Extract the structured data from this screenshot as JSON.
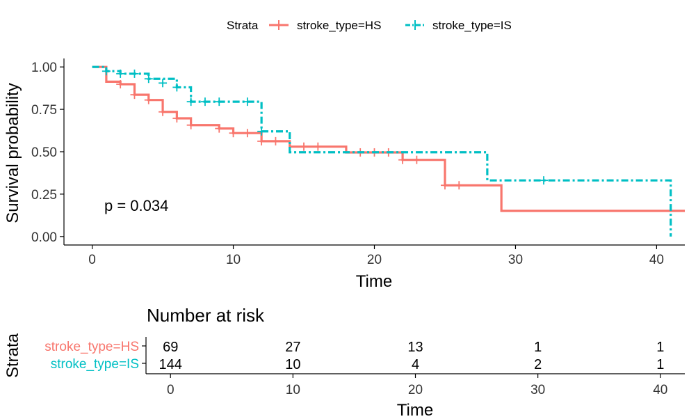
{
  "colors": {
    "hs": "#F8766D",
    "is": "#00BFC4",
    "axis": "#000000"
  },
  "chart_data": [
    {
      "type": "line",
      "subtype": "kaplan-meier",
      "xlabel": "Time",
      "ylabel": "Survival probability",
      "xlim": [
        -2,
        42
      ],
      "ylim": [
        -0.05,
        1.05
      ],
      "xticks": [
        0,
        10,
        20,
        30,
        40
      ],
      "yticks": [
        0.0,
        0.25,
        0.5,
        0.75,
        1.0
      ],
      "ytick_labels": [
        "0.00",
        "0.25",
        "0.50",
        "0.75",
        "1.00"
      ],
      "grid": false,
      "annotation": "p = 0.034",
      "legend": {
        "title": "Strata",
        "position": "top"
      },
      "series": [
        {
          "name": "stroke_type=HS",
          "color": "#F8766D",
          "line_style": "solid",
          "steps": [
            [
              0,
              1.0
            ],
            [
              1,
              0.913
            ],
            [
              2,
              0.898
            ],
            [
              3,
              0.836
            ],
            [
              4,
              0.805
            ],
            [
              5,
              0.735
            ],
            [
              6,
              0.697
            ],
            [
              7,
              0.657
            ],
            [
              9,
              0.637
            ],
            [
              10,
              0.61
            ],
            [
              12,
              0.562
            ],
            [
              14,
              0.53
            ],
            [
              18,
              0.496
            ],
            [
              22,
              0.452
            ],
            [
              25,
              0.302
            ],
            [
              29,
              0.151
            ],
            [
              42,
              0.151
            ]
          ],
          "censors": [
            [
              2,
              0.898
            ],
            [
              3,
              0.836
            ],
            [
              4,
              0.805
            ],
            [
              5,
              0.735
            ],
            [
              6,
              0.697
            ],
            [
              7,
              0.657
            ],
            [
              9,
              0.637
            ],
            [
              10,
              0.61
            ],
            [
              11,
              0.61
            ],
            [
              12,
              0.562
            ],
            [
              13,
              0.562
            ],
            [
              15,
              0.53
            ],
            [
              16,
              0.53
            ],
            [
              19,
              0.496
            ],
            [
              20,
              0.496
            ],
            [
              21,
              0.496
            ],
            [
              22,
              0.452
            ],
            [
              23,
              0.452
            ],
            [
              25,
              0.302
            ],
            [
              26,
              0.302
            ]
          ]
        },
        {
          "name": "stroke_type=IS",
          "color": "#00BFC4",
          "line_style": "dotdash",
          "steps": [
            [
              0,
              1.0
            ],
            [
              1,
              0.975
            ],
            [
              2,
              0.96
            ],
            [
              4,
              0.93
            ],
            [
              6,
              0.88
            ],
            [
              7,
              0.795
            ],
            [
              12,
              0.62
            ],
            [
              14,
              0.497
            ],
            [
              28,
              0.331
            ],
            [
              41,
              0.0
            ]
          ],
          "censors": [
            [
              1,
              0.975
            ],
            [
              2,
              0.96
            ],
            [
              3,
              0.96
            ],
            [
              4,
              0.93
            ],
            [
              5,
              0.905
            ],
            [
              6,
              0.88
            ],
            [
              7,
              0.795
            ],
            [
              8,
              0.795
            ],
            [
              9,
              0.795
            ],
            [
              11,
              0.795
            ],
            [
              12,
              0.62
            ],
            [
              32,
              0.331
            ]
          ]
        }
      ]
    },
    {
      "type": "table",
      "title": "Number at risk",
      "xlabel": "Time",
      "ylabel": "Strata",
      "xlim": [
        -2,
        42
      ],
      "xticks": [
        0,
        10,
        20,
        30,
        40
      ],
      "rows": [
        {
          "name": "stroke_type=HS",
          "color": "#F8766D",
          "values": [
            69,
            27,
            13,
            1,
            1
          ]
        },
        {
          "name": "stroke_type=IS",
          "color": "#00BFC4",
          "values": [
            144,
            10,
            4,
            2,
            1
          ]
        }
      ]
    }
  ]
}
